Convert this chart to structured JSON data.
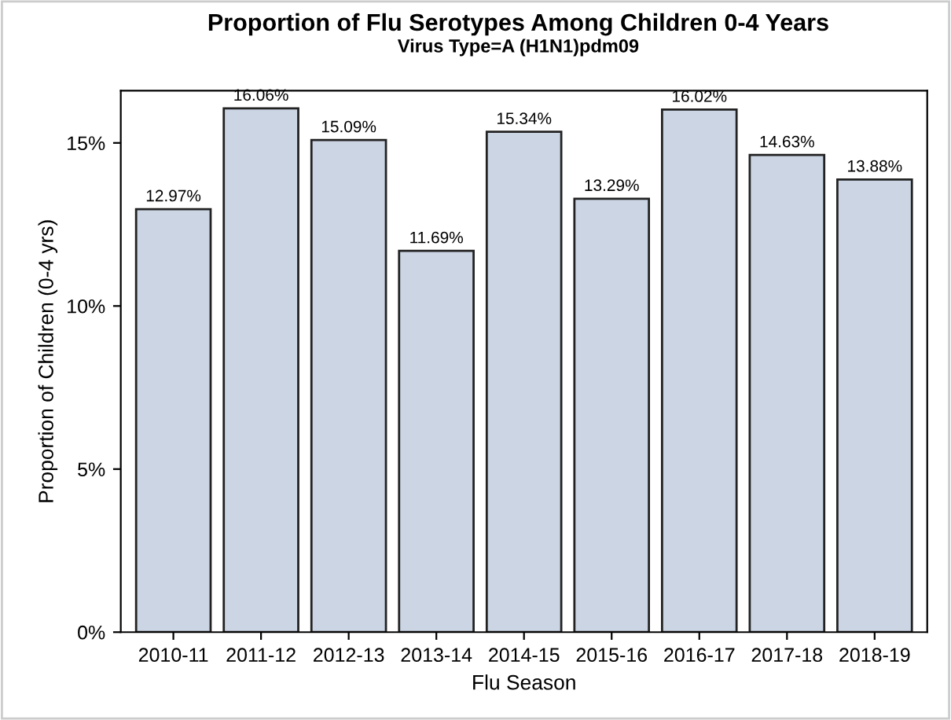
{
  "chart_data": {
    "type": "bar",
    "title": "Proportion of Flu Serotypes Among Children 0-4 Years",
    "subtitle": "Virus Type=A (H1N1)pdm09",
    "xlabel": "Flu Season",
    "ylabel": "Proportion of Children (0-4 yrs)",
    "categories": [
      "2010-11",
      "2011-12",
      "2012-13",
      "2013-14",
      "2014-15",
      "2015-16",
      "2016-17",
      "2017-18",
      "2018-19"
    ],
    "values": [
      12.97,
      16.06,
      15.09,
      11.69,
      15.34,
      13.29,
      16.02,
      14.63,
      13.88
    ],
    "value_labels": [
      "12.97%",
      "16.06%",
      "15.09%",
      "11.69%",
      "15.34%",
      "13.29%",
      "16.02%",
      "14.63%",
      "13.88%"
    ],
    "color": "#cbd5e4",
    "ylim": [
      0,
      16.6
    ],
    "yticks": [
      {
        "value": 0,
        "label": "0%"
      },
      {
        "value": 5,
        "label": "5%"
      },
      {
        "value": 10,
        "label": "10%"
      },
      {
        "value": 15,
        "label": "15%"
      }
    ],
    "grid": false
  }
}
